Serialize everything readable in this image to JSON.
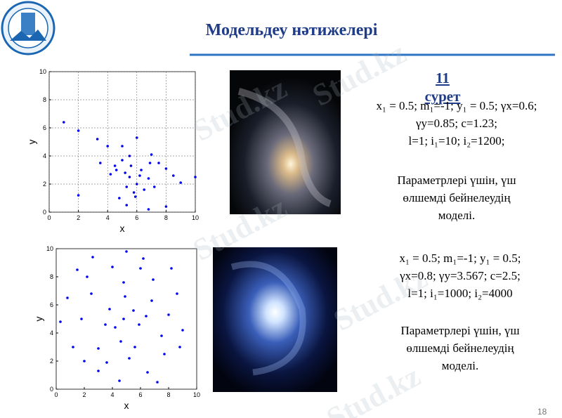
{
  "header": {
    "title": "Модельдеу нәтижелері"
  },
  "figure_label": "11 сурет",
  "plots": [
    {
      "type": "scatter",
      "x_label": "x",
      "y_label": "y",
      "xlim": [
        0,
        10
      ],
      "ylim": [
        0,
        10
      ],
      "xticks": [
        0,
        2,
        4,
        6,
        8,
        10
      ],
      "yticks": [
        0,
        2,
        4,
        6,
        8,
        10
      ],
      "grid": true,
      "color": "#0000ee",
      "x": [
        1.0,
        2.0,
        3.3,
        4.0,
        4.5,
        5.0,
        5.5,
        6.0,
        7.0,
        7.5,
        8.0,
        8.5,
        9.0,
        10.0,
        3.5,
        4.2,
        6.8,
        5.3,
        4.8,
        8.0,
        2.0,
        5.2,
        5.6,
        6.3,
        6.8,
        6.5,
        5.8,
        5.3,
        5.5,
        6.0,
        6.2,
        5.9,
        7.2,
        6.9,
        5.0,
        4.6
      ],
      "y": [
        6.4,
        5.8,
        5.2,
        4.7,
        3.3,
        4.7,
        4.0,
        5.3,
        4.1,
        3.5,
        3.1,
        2.6,
        2.1,
        2.5,
        3.5,
        2.7,
        0.2,
        0.5,
        1.0,
        0.4,
        1.2,
        2.8,
        3.3,
        3.0,
        2.4,
        1.6,
        1.4,
        1.8,
        2.5,
        2.0,
        2.6,
        1.1,
        1.8,
        3.5,
        3.7,
        3.0
      ]
    },
    {
      "type": "scatter",
      "x_label": "x",
      "y_label": "y",
      "xlim": [
        0,
        10
      ],
      "ylim": [
        0,
        10
      ],
      "xticks": [
        0,
        2,
        4,
        6,
        8,
        10
      ],
      "yticks": [
        0,
        2,
        4,
        6,
        8,
        10
      ],
      "grid": false,
      "color": "#0000ee",
      "x": [
        4.8,
        5.5,
        4.2,
        5.9,
        3.8,
        6.4,
        3.5,
        6.8,
        4.9,
        4.6,
        2.5,
        7.5,
        3.0,
        6.9,
        5.2,
        1.8,
        8.0,
        2.2,
        7.7,
        4.0,
        6.0,
        1.2,
        8.6,
        3.0,
        6.5,
        5.0,
        4.5,
        0.8,
        9.0,
        1.5,
        8.2,
        2.6,
        7.2,
        4.8,
        5.6,
        0.3,
        2.0,
        8.8,
        3.6,
        6.2
      ],
      "y": [
        5.0,
        5.6,
        4.4,
        4.6,
        5.7,
        5.2,
        4.6,
        6.3,
        6.6,
        3.4,
        6.8,
        3.8,
        2.9,
        7.8,
        2.2,
        5.0,
        5.3,
        8.0,
        2.5,
        8.7,
        8.6,
        3.0,
        6.8,
        1.3,
        1.2,
        9.8,
        0.6,
        6.5,
        4.2,
        8.5,
        8.6,
        9.4,
        0.5,
        7.6,
        3.0,
        4.8,
        2.0,
        3.0,
        1.9,
        9.3
      ]
    }
  ],
  "captions": [
    {
      "params": [
        "x₁ = 0.5; m₁=-1; y₁ = 0.5; γx=0.6;",
        "γy=0.85; c=1.23;",
        "l=1; i₁=10; i₂=1200;"
      ],
      "description": [
        "Параметрлері үшін, үш",
        "өлшемді бейнелеудің",
        "моделі."
      ]
    },
    {
      "params": [
        "x₁ = 0.5; m₁=-1; y₁ = 0.5;",
        "γx=0.8; γy=3.567; c=2.5;",
        "l=1; i₁=1000; i₂=4000"
      ],
      "description": [
        "Параметрлері үшін, үш",
        "өлшемді бейнелеудің",
        "моделі."
      ]
    }
  ],
  "page_number": "18",
  "watermarks": [
    "Stud.kz",
    "Stud.kz",
    "Stud.kz",
    "Stud.kz",
    "Stud.kz"
  ]
}
